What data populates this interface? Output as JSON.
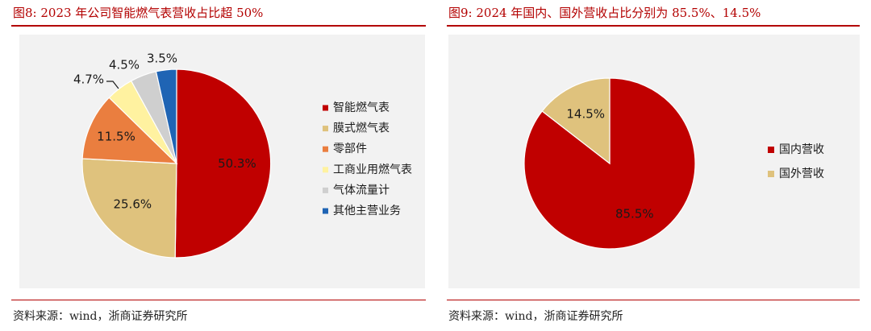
{
  "figures": [
    {
      "title": "图8:   2023 年公司智能燃气表营收占比超 50%",
      "source": "资料来源：wind，浙商证券研究所"
    },
    {
      "title": "图9:   2024 年国内、国外营收占比分别为 85.5%、14.5%",
      "source": "资料来源：wind，浙商证券研究所"
    }
  ],
  "chart_data": [
    {
      "type": "pie",
      "title": "",
      "legend_position": "right",
      "slices": [
        {
          "name": "智能燃气表",
          "value": 50.3,
          "label": "50.3%",
          "color": "#c00000"
        },
        {
          "name": "膜式燃气表",
          "value": 25.6,
          "label": "25.6%",
          "color": "#dfc27d"
        },
        {
          "name": "零部件",
          "value": 11.5,
          "label": "11.5%",
          "color": "#ea7e3f"
        },
        {
          "name": "工商业用燃气表",
          "value": 4.7,
          "label": "4.7%",
          "color": "#fff2a0"
        },
        {
          "name": "气体流量计",
          "value": 4.5,
          "label": "4.5%",
          "color": "#cfcfcf"
        },
        {
          "name": "其他主营业务",
          "value": 3.5,
          "label": "3.5%",
          "color": "#1f64b4"
        }
      ]
    },
    {
      "type": "pie",
      "title": "",
      "legend_position": "right",
      "slices": [
        {
          "name": "国内营收",
          "value": 85.5,
          "label": "85.5%",
          "color": "#c00000"
        },
        {
          "name": "国外营收",
          "value": 14.5,
          "label": "14.5%",
          "color": "#dfc27d"
        }
      ]
    }
  ]
}
